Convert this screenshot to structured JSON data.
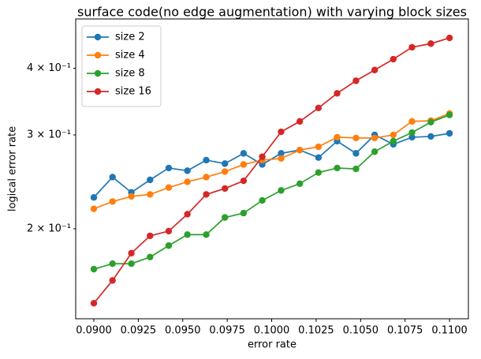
{
  "chart_data": {
    "type": "line",
    "title": "surface code(no edge augmentation) with varying block sizes",
    "xlabel": "error rate",
    "ylabel": "logical error rate",
    "yscale": "log",
    "legend": "upper left",
    "x": [
      0.09,
      0.09105,
      0.09211,
      0.09316,
      0.09421,
      0.09526,
      0.09632,
      0.09737,
      0.09842,
      0.09947,
      0.10053,
      0.10158,
      0.10263,
      0.10368,
      0.10474,
      0.10579,
      0.10684,
      0.10789,
      0.10895,
      0.11
    ],
    "series": [
      {
        "name": "size 2",
        "color": "#1f77b4",
        "values": [
          0.229,
          0.25,
          0.234,
          0.247,
          0.26,
          0.257,
          0.269,
          0.265,
          0.277,
          0.264,
          0.277,
          0.281,
          0.272,
          0.292,
          0.277,
          0.3,
          0.288,
          0.297,
          0.298,
          0.302
        ]
      },
      {
        "name": "size 4",
        "color": "#ff7f0e",
        "values": [
          0.218,
          0.225,
          0.23,
          0.232,
          0.239,
          0.245,
          0.25,
          0.256,
          0.264,
          0.269,
          0.271,
          0.281,
          0.285,
          0.297,
          0.296,
          0.296,
          0.3,
          0.318,
          0.319,
          0.329
        ]
      },
      {
        "name": "size 8",
        "color": "#2ca02c",
        "values": [
          0.168,
          0.172,
          0.172,
          0.177,
          0.186,
          0.195,
          0.195,
          0.21,
          0.214,
          0.226,
          0.236,
          0.243,
          0.255,
          0.26,
          0.259,
          0.279,
          0.292,
          0.303,
          0.317,
          0.327
        ]
      },
      {
        "name": "size 16",
        "color": "#d62728",
        "values": [
          0.145,
          0.16,
          0.18,
          0.194,
          0.198,
          0.213,
          0.232,
          0.238,
          0.246,
          0.273,
          0.304,
          0.318,
          0.337,
          0.359,
          0.379,
          0.397,
          0.416,
          0.438,
          0.445,
          0.456
        ]
      }
    ],
    "xlim": [
      0.08898,
      0.11106
    ],
    "xticks": [
      {
        "value": 0.09,
        "label": "0.0900"
      },
      {
        "value": 0.0925,
        "label": "0.0925"
      },
      {
        "value": 0.095,
        "label": "0.0950"
      },
      {
        "value": 0.0975,
        "label": "0.0975"
      },
      {
        "value": 0.1,
        "label": "0.1000"
      },
      {
        "value": 0.1025,
        "label": "0.1025"
      },
      {
        "value": 0.105,
        "label": "0.1050"
      },
      {
        "value": 0.1075,
        "label": "0.1075"
      },
      {
        "value": 0.11,
        "label": "0.1100"
      }
    ],
    "ylim": [
      0.1356,
      0.495
    ],
    "yticks": [
      {
        "value": 0.2,
        "label": "2 × 10⁻¹"
      },
      {
        "value": 0.3,
        "label": "3 × 10⁻¹"
      },
      {
        "value": 0.4,
        "label": "4 × 10⁻¹"
      }
    ]
  }
}
